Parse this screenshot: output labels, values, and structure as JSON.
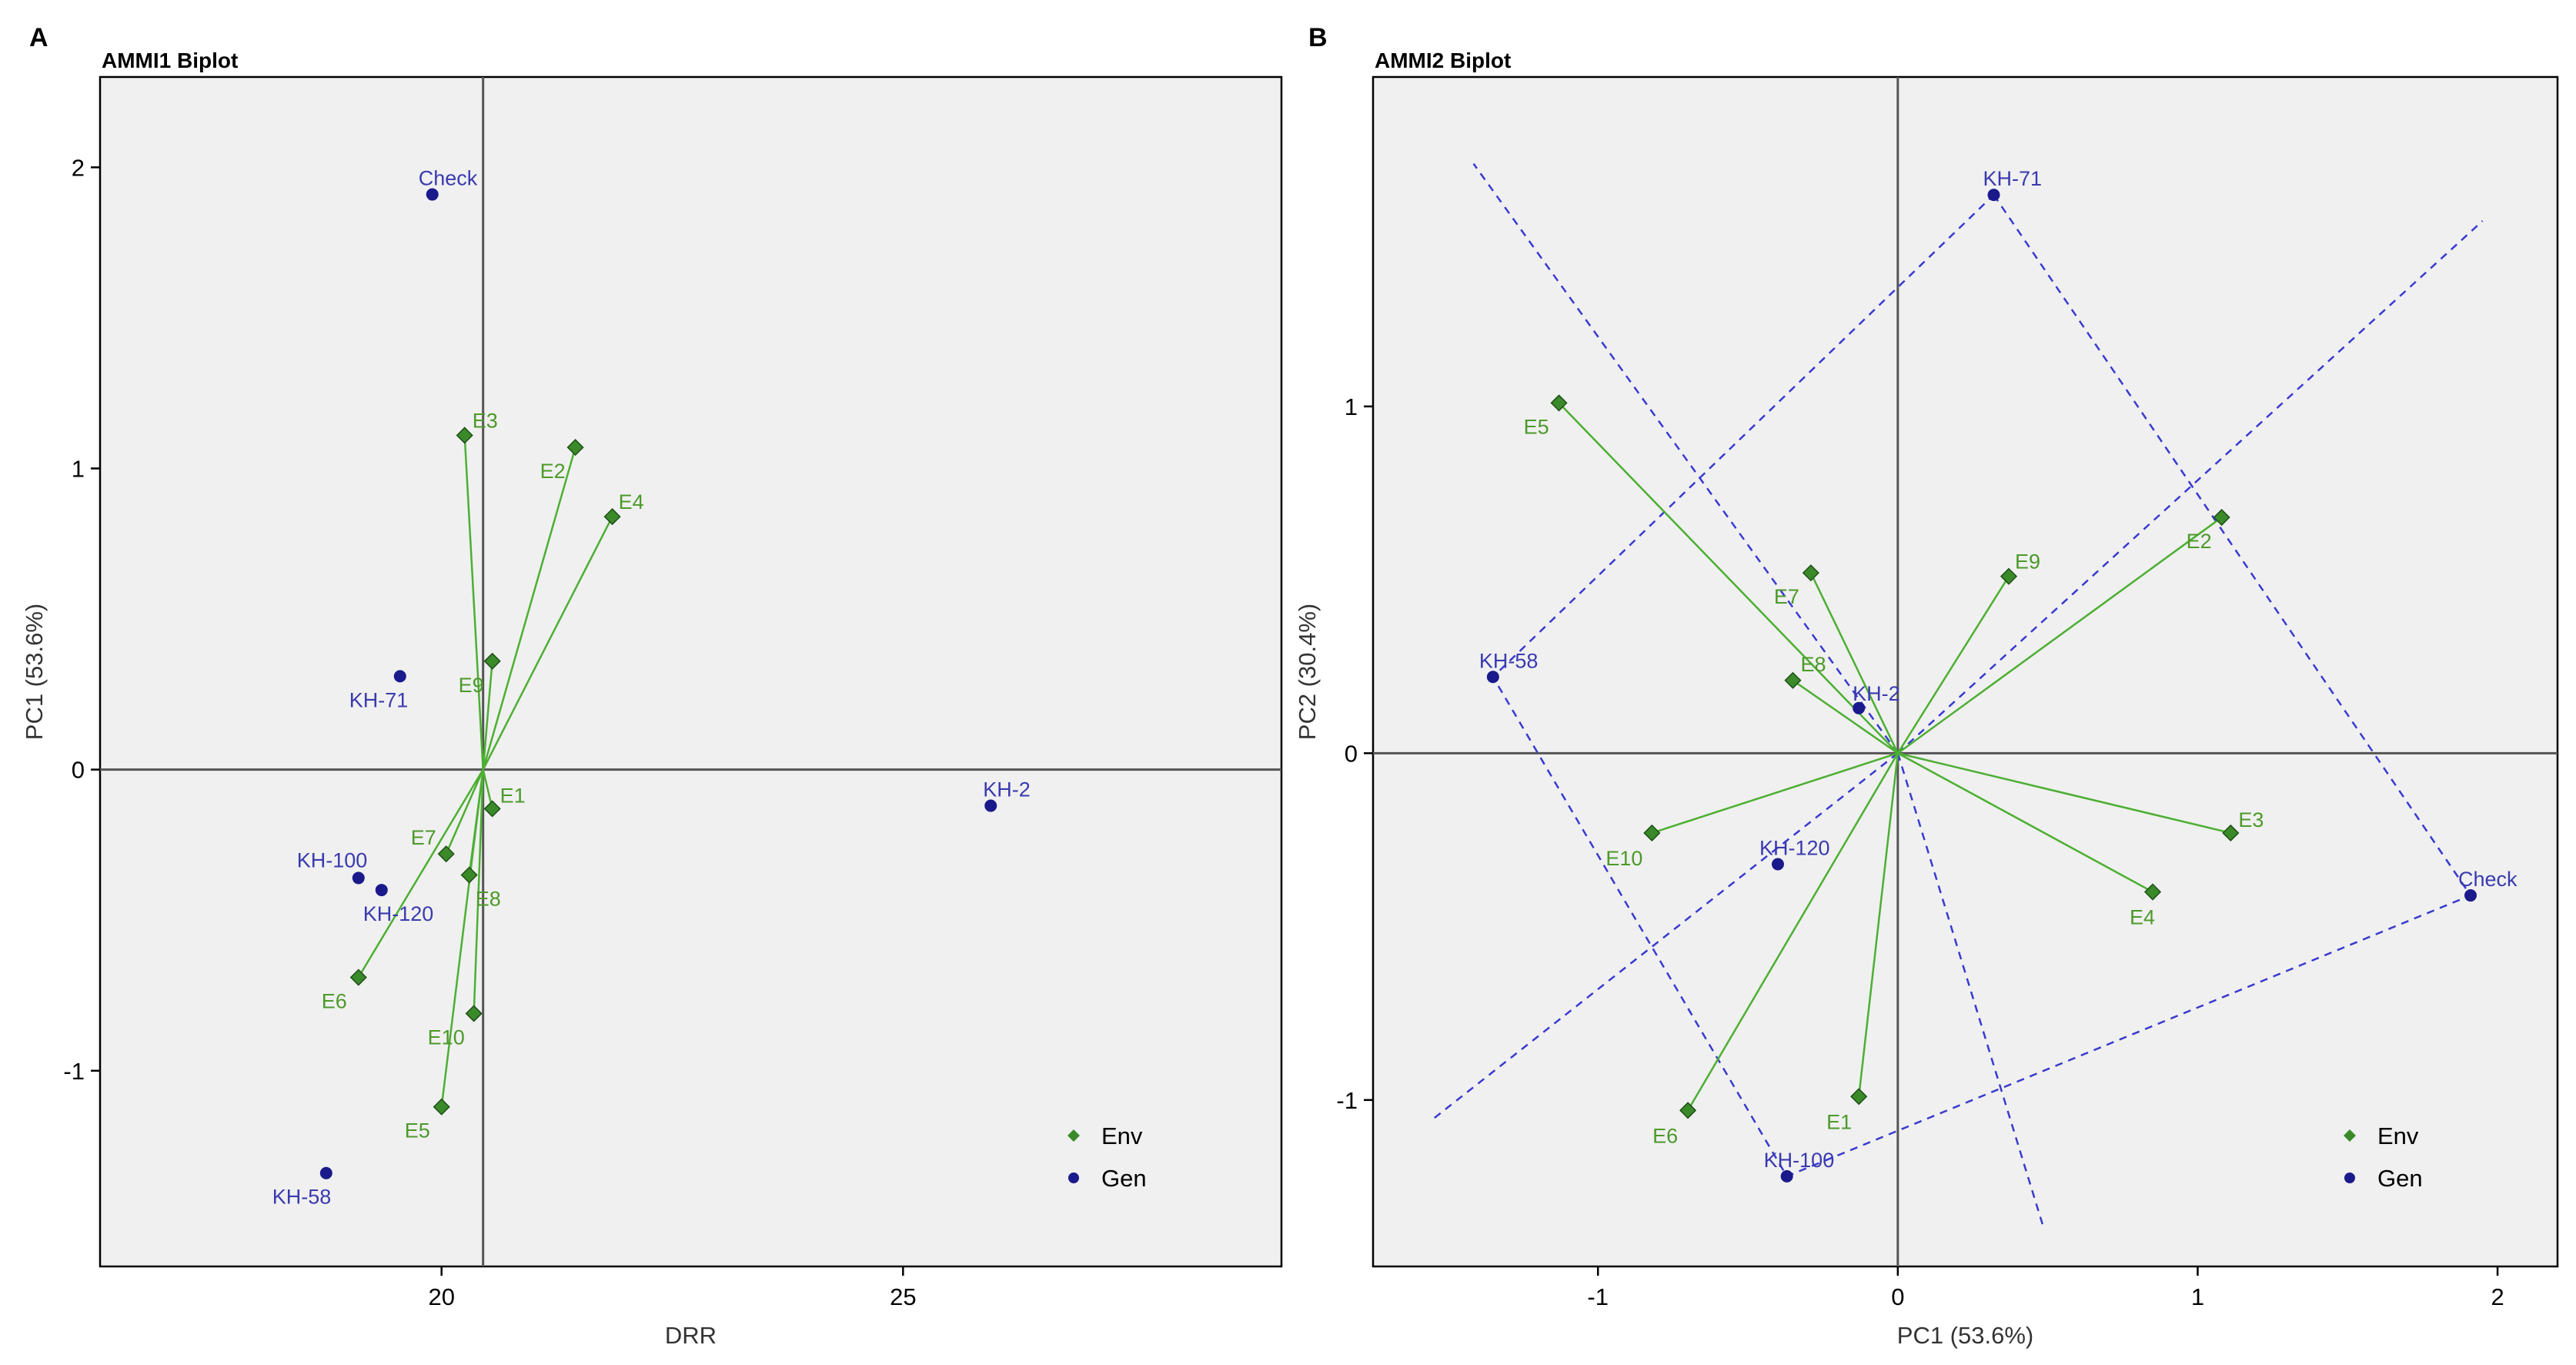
{
  "colors": {
    "background": "#ffffff",
    "panel_bg": "#f0f0f0",
    "env": "#3a8a2a",
    "env_line": "#4caf32",
    "gen": "#1a1a8c",
    "polygon": "#3a3ad0",
    "axis": "#000000",
    "refline": "#555555"
  },
  "legend": {
    "env": "Env",
    "gen": "Gen"
  },
  "chart_data": [
    {
      "type": "scatter",
      "letter": "A",
      "title": "AMMI1 Biplot",
      "xlabel": "DRR",
      "ylabel": "PC1 (53.6%)",
      "xlim": [
        16.3,
        29.1
      ],
      "ylim": [
        -1.65,
        2.3
      ],
      "xticks": [
        20,
        25
      ],
      "yticks": [
        2,
        1,
        0,
        -1
      ],
      "ytick_labels": [
        "2",
        "1",
        "0",
        "-1"
      ],
      "grand_mean": 20.45,
      "hline": 0,
      "legend_position": "bottom-right",
      "env": [
        {
          "name": "E1",
          "x": 20.55,
          "y": -0.13
        },
        {
          "name": "E2",
          "x": 21.45,
          "y": 1.07
        },
        {
          "name": "E3",
          "x": 20.25,
          "y": 1.11
        },
        {
          "name": "E4",
          "x": 21.85,
          "y": 0.84
        },
        {
          "name": "E5",
          "x": 20.0,
          "y": -1.12
        },
        {
          "name": "E6",
          "x": 19.1,
          "y": -0.69
        },
        {
          "name": "E7",
          "x": 20.05,
          "y": -0.28
        },
        {
          "name": "E8",
          "x": 20.3,
          "y": -0.35
        },
        {
          "name": "E9",
          "x": 20.55,
          "y": 0.36
        },
        {
          "name": "E10",
          "x": 20.35,
          "y": -0.81
        }
      ],
      "gen": [
        {
          "name": "Check",
          "x": 19.9,
          "y": 1.91
        },
        {
          "name": "KH-71",
          "x": 19.55,
          "y": 0.31
        },
        {
          "name": "KH-2",
          "x": 25.95,
          "y": -0.12
        },
        {
          "name": "KH-100",
          "x": 19.1,
          "y": -0.36
        },
        {
          "name": "KH-120",
          "x": 19.35,
          "y": -0.4
        },
        {
          "name": "KH-58",
          "x": 18.75,
          "y": -1.34
        }
      ]
    },
    {
      "type": "scatter",
      "letter": "B",
      "title": "AMMI2 Biplot",
      "xlabel": "PC1 (53.6%)",
      "ylabel": "PC2 (30.4%)",
      "xlim": [
        -1.75,
        2.2
      ],
      "ylim": [
        -1.48,
        1.95
      ],
      "xticks": [
        -1,
        0,
        1,
        2
      ],
      "xtick_labels": [
        "-1",
        "0",
        "1",
        "2"
      ],
      "yticks": [
        1,
        0,
        -1
      ],
      "ytick_labels": [
        "1",
        "0",
        "-1"
      ],
      "vline": 0,
      "hline": 0,
      "legend_position": "bottom-right",
      "env": [
        {
          "name": "E1",
          "x": -0.13,
          "y": -0.99
        },
        {
          "name": "E2",
          "x": 1.08,
          "y": 0.68
        },
        {
          "name": "E3",
          "x": 1.11,
          "y": -0.23
        },
        {
          "name": "E4",
          "x": 0.85,
          "y": -0.4
        },
        {
          "name": "E5",
          "x": -1.13,
          "y": 1.01
        },
        {
          "name": "E6",
          "x": -0.7,
          "y": -1.03
        },
        {
          "name": "E7",
          "x": -0.29,
          "y": 0.52
        },
        {
          "name": "E8",
          "x": -0.35,
          "y": 0.21
        },
        {
          "name": "E9",
          "x": 0.37,
          "y": 0.51
        },
        {
          "name": "E10",
          "x": -0.82,
          "y": -0.23
        }
      ],
      "gen": [
        {
          "name": "KH-71",
          "x": 0.32,
          "y": 1.61
        },
        {
          "name": "KH-58",
          "x": -1.35,
          "y": 0.22
        },
        {
          "name": "KH-2",
          "x": -0.13,
          "y": 0.13
        },
        {
          "name": "KH-120",
          "x": -0.4,
          "y": -0.32
        },
        {
          "name": "Check",
          "x": 1.91,
          "y": -0.41
        },
        {
          "name": "KH-100",
          "x": -0.37,
          "y": -1.22
        }
      ],
      "hull": [
        "KH-71",
        "Check",
        "KH-100",
        "KH-58"
      ]
    }
  ]
}
